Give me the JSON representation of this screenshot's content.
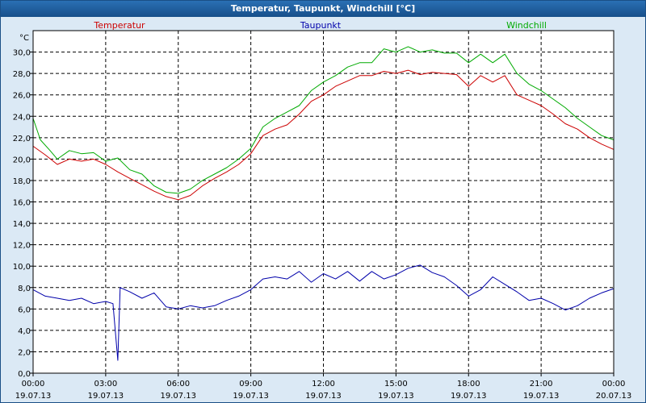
{
  "window": {
    "title": "Temperatur, Taupunkt, Windchill [°C]"
  },
  "colors": {
    "temperature": "#cc0000",
    "dewpoint": "#0000aa",
    "windchill": "#00aa00",
    "grid": "#000000",
    "plot_background": "#ffffff"
  },
  "chart_data": {
    "type": "line",
    "title": "Temperatur, Taupunkt, Windchill [°C]",
    "ylabel": "°C",
    "ylim": [
      0,
      32
    ],
    "yticks": [
      0,
      2,
      4,
      6,
      8,
      10,
      12,
      14,
      16,
      18,
      20,
      22,
      24,
      26,
      28,
      30
    ],
    "ytick_labels": [
      "0,0",
      "2,0",
      "4,0",
      "6,0",
      "8,0",
      "10,0",
      "12,0",
      "14,0",
      "16,0",
      "18,0",
      "20,0",
      "22,0",
      "24,0",
      "26,0",
      "28,0",
      "30,0"
    ],
    "xlim": [
      0,
      24
    ],
    "xticks": [
      0,
      3,
      6,
      9,
      12,
      15,
      18,
      21,
      24
    ],
    "xtick_times": [
      "00:00",
      "03:00",
      "06:00",
      "09:00",
      "12:00",
      "15:00",
      "18:00",
      "21:00",
      "00:00"
    ],
    "xtick_dates": [
      "19.07.13",
      "19.07.13",
      "19.07.13",
      "19.07.13",
      "19.07.13",
      "19.07.13",
      "19.07.13",
      "19.07.13",
      "20.07.13"
    ],
    "grid": true,
    "series": [
      {
        "name": "Temperatur",
        "color_key": "temperature",
        "points": [
          [
            0,
            21.2
          ],
          [
            0.5,
            20.4
          ],
          [
            1,
            19.5
          ],
          [
            1.5,
            20.0
          ],
          [
            2,
            19.8
          ],
          [
            2.5,
            20.0
          ],
          [
            3,
            19.5
          ],
          [
            3.5,
            18.8
          ],
          [
            4,
            18.2
          ],
          [
            4.5,
            17.6
          ],
          [
            5,
            17.0
          ],
          [
            5.5,
            16.5
          ],
          [
            6,
            16.2
          ],
          [
            6.5,
            16.6
          ],
          [
            7,
            17.5
          ],
          [
            7.5,
            18.2
          ],
          [
            8,
            18.8
          ],
          [
            8.5,
            19.5
          ],
          [
            9,
            20.5
          ],
          [
            9.5,
            22.2
          ],
          [
            10,
            22.8
          ],
          [
            10.5,
            23.2
          ],
          [
            11,
            24.2
          ],
          [
            11.5,
            25.4
          ],
          [
            12,
            26.0
          ],
          [
            12.5,
            26.8
          ],
          [
            13,
            27.3
          ],
          [
            13.5,
            27.8
          ],
          [
            14,
            27.8
          ],
          [
            14.5,
            28.2
          ],
          [
            15,
            28.0
          ],
          [
            15.5,
            28.3
          ],
          [
            16,
            27.9
          ],
          [
            16.5,
            28.1
          ],
          [
            17,
            28.0
          ],
          [
            17.5,
            27.9
          ],
          [
            18,
            26.8
          ],
          [
            18.5,
            27.8
          ],
          [
            19,
            27.2
          ],
          [
            19.5,
            27.8
          ],
          [
            20,
            26.0
          ],
          [
            20.5,
            25.5
          ],
          [
            21,
            25.0
          ],
          [
            21.5,
            24.2
          ],
          [
            22,
            23.3
          ],
          [
            22.5,
            22.8
          ],
          [
            23,
            22.0
          ],
          [
            23.5,
            21.4
          ],
          [
            24,
            20.9
          ]
        ]
      },
      {
        "name": "Taupunkt",
        "color_key": "dewpoint",
        "points": [
          [
            0,
            7.8
          ],
          [
            0.5,
            7.2
          ],
          [
            1,
            7.0
          ],
          [
            1.5,
            6.8
          ],
          [
            2,
            7.0
          ],
          [
            2.5,
            6.5
          ],
          [
            3,
            6.7
          ],
          [
            3.3,
            6.5
          ],
          [
            3.5,
            1.2
          ],
          [
            3.6,
            8.0
          ],
          [
            4,
            7.6
          ],
          [
            4.5,
            7.0
          ],
          [
            5,
            7.5
          ],
          [
            5.5,
            6.2
          ],
          [
            6,
            6.0
          ],
          [
            6.5,
            6.3
          ],
          [
            7,
            6.1
          ],
          [
            7.5,
            6.3
          ],
          [
            8,
            6.8
          ],
          [
            8.5,
            7.2
          ],
          [
            9,
            7.8
          ],
          [
            9.5,
            8.8
          ],
          [
            10,
            9.0
          ],
          [
            10.5,
            8.8
          ],
          [
            11,
            9.5
          ],
          [
            11.5,
            8.5
          ],
          [
            12,
            9.3
          ],
          [
            12.5,
            8.8
          ],
          [
            13,
            9.5
          ],
          [
            13.5,
            8.6
          ],
          [
            14,
            9.5
          ],
          [
            14.5,
            8.8
          ],
          [
            15,
            9.2
          ],
          [
            15.5,
            9.8
          ],
          [
            16,
            10.1
          ],
          [
            16.5,
            9.4
          ],
          [
            17,
            9.0
          ],
          [
            17.5,
            8.2
          ],
          [
            18,
            7.2
          ],
          [
            18.5,
            7.8
          ],
          [
            19,
            9.0
          ],
          [
            19.5,
            8.3
          ],
          [
            20,
            7.6
          ],
          [
            20.5,
            6.8
          ],
          [
            21,
            7.0
          ],
          [
            21.5,
            6.5
          ],
          [
            22,
            5.9
          ],
          [
            22.5,
            6.3
          ],
          [
            23,
            7.0
          ],
          [
            23.5,
            7.5
          ],
          [
            24,
            7.9
          ]
        ]
      },
      {
        "name": "Windchill",
        "color_key": "windchill",
        "points": [
          [
            0,
            23.8
          ],
          [
            0.3,
            21.8
          ],
          [
            0.7,
            20.8
          ],
          [
            1,
            20.0
          ],
          [
            1.5,
            20.8
          ],
          [
            2,
            20.5
          ],
          [
            2.5,
            20.6
          ],
          [
            3,
            19.8
          ],
          [
            3.5,
            20.1
          ],
          [
            4,
            19.0
          ],
          [
            4.5,
            18.6
          ],
          [
            5,
            17.5
          ],
          [
            5.5,
            16.9
          ],
          [
            6,
            16.8
          ],
          [
            6.5,
            17.2
          ],
          [
            7,
            18.0
          ],
          [
            7.5,
            18.6
          ],
          [
            8,
            19.2
          ],
          [
            8.5,
            20.0
          ],
          [
            9,
            21.0
          ],
          [
            9.5,
            23.0
          ],
          [
            10,
            23.8
          ],
          [
            10.5,
            24.4
          ],
          [
            11,
            25.0
          ],
          [
            11.5,
            26.4
          ],
          [
            12,
            27.2
          ],
          [
            12.5,
            27.8
          ],
          [
            13,
            28.6
          ],
          [
            13.5,
            29.0
          ],
          [
            14,
            29.0
          ],
          [
            14.5,
            30.3
          ],
          [
            15,
            30.0
          ],
          [
            15.5,
            30.5
          ],
          [
            16,
            30.0
          ],
          [
            16.5,
            30.2
          ],
          [
            17,
            29.9
          ],
          [
            17.5,
            29.9
          ],
          [
            18,
            29.0
          ],
          [
            18.5,
            29.8
          ],
          [
            19,
            29.0
          ],
          [
            19.5,
            29.8
          ],
          [
            20,
            28.0
          ],
          [
            20.5,
            27.0
          ],
          [
            21,
            26.4
          ],
          [
            21.5,
            25.6
          ],
          [
            22,
            24.8
          ],
          [
            22.5,
            23.8
          ],
          [
            23,
            23.0
          ],
          [
            23.5,
            22.2
          ],
          [
            24,
            21.8
          ]
        ]
      }
    ]
  }
}
